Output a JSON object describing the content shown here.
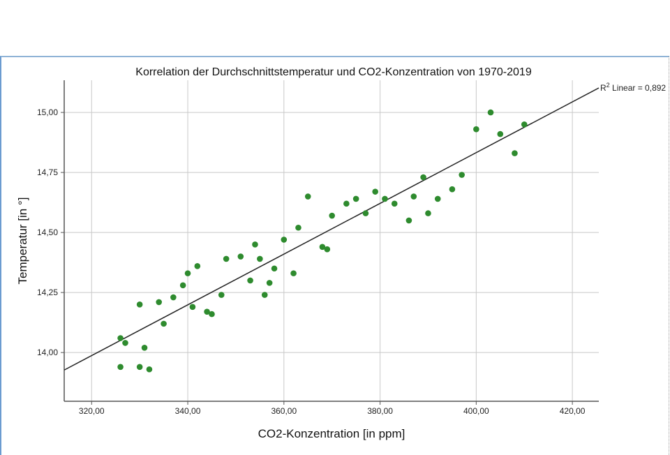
{
  "chart_data": {
    "type": "scatter",
    "title": "Korrelation der Durchschnittstemperatur und CO2-Konzentration von 1970-2019",
    "xlabel": "CO2-Konzentration [in ppm]",
    "ylabel": "Temperatur [in °]",
    "xlim": [
      314.3,
      425.5
    ],
    "ylim": [
      13.797,
      15.134
    ],
    "xticks": [
      320,
      340,
      360,
      380,
      400,
      420
    ],
    "xtick_labels": [
      "320,00",
      "340,00",
      "360,00",
      "380,00",
      "400,00",
      "420,00"
    ],
    "yticks": [
      14.0,
      14.25,
      14.5,
      14.75,
      15.0
    ],
    "ytick_labels": [
      "14,00",
      "14,25",
      "14,50",
      "14,75",
      "15,00"
    ],
    "grid": true,
    "point_color": "#2e8b2e",
    "points": [
      [
        326,
        14.06
      ],
      [
        327,
        14.04
      ],
      [
        326,
        13.94
      ],
      [
        330,
        14.2
      ],
      [
        330,
        13.94
      ],
      [
        331,
        14.02
      ],
      [
        332,
        13.93
      ],
      [
        334,
        14.21
      ],
      [
        335,
        14.12
      ],
      [
        337,
        14.23
      ],
      [
        339,
        14.28
      ],
      [
        340,
        14.33
      ],
      [
        341,
        14.19
      ],
      [
        342,
        14.36
      ],
      [
        344,
        14.17
      ],
      [
        345,
        14.16
      ],
      [
        347,
        14.24
      ],
      [
        348,
        14.39
      ],
      [
        351,
        14.4
      ],
      [
        353,
        14.3
      ],
      [
        354,
        14.45
      ],
      [
        355,
        14.39
      ],
      [
        356,
        14.24
      ],
      [
        357,
        14.29
      ],
      [
        358,
        14.35
      ],
      [
        360,
        14.47
      ],
      [
        362,
        14.33
      ],
      [
        363,
        14.52
      ],
      [
        365,
        14.65
      ],
      [
        368,
        14.44
      ],
      [
        369,
        14.43
      ],
      [
        370,
        14.57
      ],
      [
        373,
        14.62
      ],
      [
        375,
        14.64
      ],
      [
        377,
        14.58
      ],
      [
        379,
        14.67
      ],
      [
        381,
        14.64
      ],
      [
        383,
        14.62
      ],
      [
        386,
        14.55
      ],
      [
        387,
        14.65
      ],
      [
        389,
        14.73
      ],
      [
        390,
        14.58
      ],
      [
        392,
        14.64
      ],
      [
        395,
        14.68
      ],
      [
        397,
        14.74
      ],
      [
        400,
        14.93
      ],
      [
        403,
        15.0
      ],
      [
        405,
        14.91
      ],
      [
        408,
        14.83
      ],
      [
        410,
        14.95
      ]
    ],
    "fit_line": {
      "type": "linear",
      "x": [
        314.3,
        425.5
      ],
      "y": [
        13.927,
        15.102
      ]
    },
    "annotation": {
      "prefix": "R",
      "sup": "2",
      "text": " Linear = 0,892"
    }
  }
}
